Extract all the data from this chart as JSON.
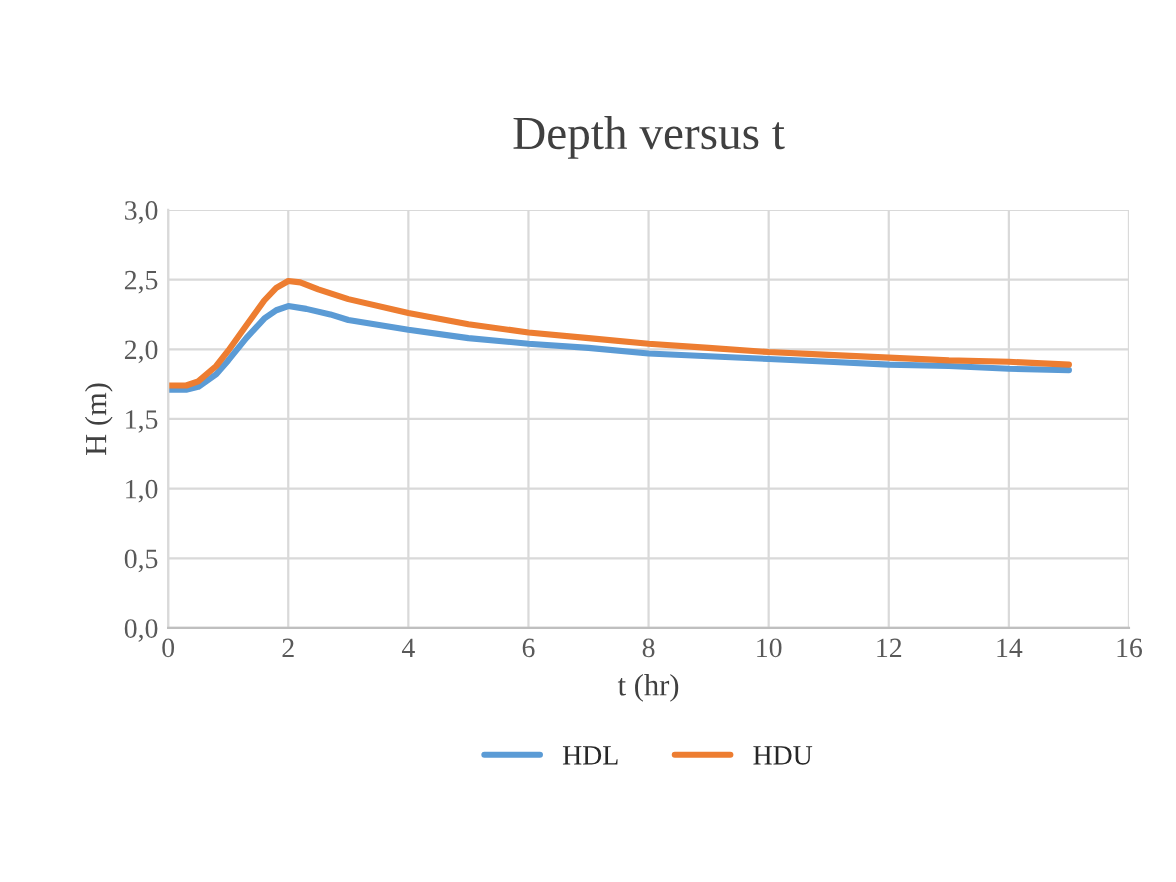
{
  "chart_data": {
    "type": "line",
    "title": "Depth versus t",
    "xlabel": "t (hr)",
    "ylabel": "H (m)",
    "series": [
      {
        "name": "HDL",
        "color": "#5b9bd5",
        "x": [
          0,
          0.3,
          0.5,
          0.8,
          1.0,
          1.3,
          1.6,
          1.8,
          2.0,
          2.3,
          2.7,
          3,
          4,
          5,
          6,
          7,
          8,
          9,
          10,
          11,
          12,
          13,
          14,
          15
        ],
        "values": [
          1.71,
          1.71,
          1.73,
          1.82,
          1.92,
          2.08,
          2.22,
          2.28,
          2.31,
          2.29,
          2.25,
          2.21,
          2.14,
          2.08,
          2.04,
          2.01,
          1.97,
          1.95,
          1.93,
          1.91,
          1.89,
          1.88,
          1.86,
          1.85
        ]
      },
      {
        "name": "HDU",
        "color": "#ed7d31",
        "x": [
          0,
          0.3,
          0.5,
          0.8,
          1.0,
          1.3,
          1.6,
          1.8,
          2.0,
          2.2,
          2.5,
          3,
          4,
          5,
          6,
          7,
          8,
          9,
          10,
          11,
          12,
          13,
          14,
          15
        ],
        "values": [
          1.74,
          1.74,
          1.77,
          1.88,
          1.99,
          2.17,
          2.35,
          2.44,
          2.49,
          2.48,
          2.43,
          2.36,
          2.26,
          2.18,
          2.12,
          2.08,
          2.04,
          2.01,
          1.98,
          1.96,
          1.94,
          1.92,
          1.91,
          1.89
        ]
      }
    ],
    "xlim": [
      0,
      16
    ],
    "xticks": [
      0,
      2,
      4,
      6,
      8,
      10,
      12,
      14,
      16
    ],
    "ylim": [
      0,
      3
    ],
    "yticks": [
      {
        "value": 0,
        "label": "0,0"
      },
      {
        "value": 0.5,
        "label": "0,5"
      },
      {
        "value": 1,
        "label": "1,0"
      },
      {
        "value": 1.5,
        "label": "1,5"
      },
      {
        "value": 2,
        "label": "2,0"
      },
      {
        "value": 2.5,
        "label": "2,5"
      },
      {
        "value": 3,
        "label": "3,0"
      }
    ],
    "grid": true,
    "legend": "bottom",
    "marker": "none",
    "line_style": "solid"
  }
}
